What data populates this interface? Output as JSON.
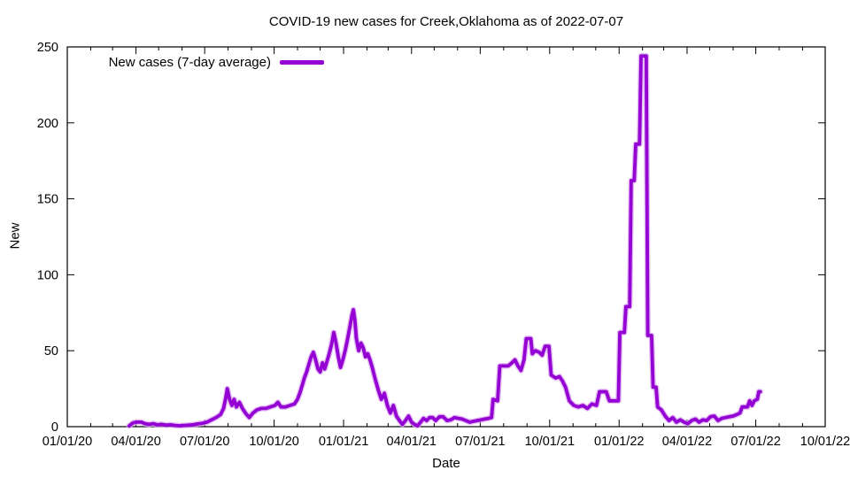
{
  "chart_data": {
    "type": "line",
    "title": "COVID-19 new cases for Creek,Oklahoma as of 2022-07-07",
    "xlabel": "Date",
    "ylabel": "New",
    "x_range": [
      "2020-01-01",
      "2022-10-01"
    ],
    "ylim": [
      0,
      250
    ],
    "grid": false,
    "legend_position": "top-left-inside",
    "background": "#ffffff",
    "border_color": "#000000",
    "y_ticks": [
      0,
      50,
      100,
      150,
      200,
      250
    ],
    "x_ticks": [
      {
        "label": "01/01/20",
        "date": "2020-01-01"
      },
      {
        "label": "04/01/20",
        "date": "2020-04-01"
      },
      {
        "label": "07/01/20",
        "date": "2020-07-01"
      },
      {
        "label": "10/01/20",
        "date": "2020-10-01"
      },
      {
        "label": "01/01/21",
        "date": "2021-01-01"
      },
      {
        "label": "04/01/21",
        "date": "2021-04-01"
      },
      {
        "label": "07/01/21",
        "date": "2021-07-01"
      },
      {
        "label": "10/01/21",
        "date": "2021-10-01"
      },
      {
        "label": "01/01/22",
        "date": "2022-01-01"
      },
      {
        "label": "04/01/22",
        "date": "2022-04-01"
      },
      {
        "label": "07/01/22",
        "date": "2022-07-01"
      },
      {
        "label": "10/01/22",
        "date": "2022-10-01"
      }
    ],
    "minor_x_ticks": "monthly",
    "series": [
      {
        "name": "New cases (7-day average)",
        "color": "#9400d3",
        "halo_color": "#d8a6ee",
        "points": [
          [
            "2020-03-23",
            0.5
          ],
          [
            "2020-03-28",
            2.5
          ],
          [
            "2020-04-02",
            3
          ],
          [
            "2020-04-08",
            3
          ],
          [
            "2020-04-13",
            2
          ],
          [
            "2020-04-18",
            1.5
          ],
          [
            "2020-04-24",
            2
          ],
          [
            "2020-04-29",
            1.2
          ],
          [
            "2020-05-05",
            1.5
          ],
          [
            "2020-05-11",
            1
          ],
          [
            "2020-05-17",
            1.2
          ],
          [
            "2020-05-23",
            0.8
          ],
          [
            "2020-05-29",
            0.6
          ],
          [
            "2020-06-04",
            0.8
          ],
          [
            "2020-06-10",
            1
          ],
          [
            "2020-06-16",
            1.3
          ],
          [
            "2020-06-22",
            1.8
          ],
          [
            "2020-06-28",
            2.2
          ],
          [
            "2020-07-04",
            3
          ],
          [
            "2020-07-10",
            4.5
          ],
          [
            "2020-07-16",
            6
          ],
          [
            "2020-07-22",
            8
          ],
          [
            "2020-07-26",
            12
          ],
          [
            "2020-07-29",
            19
          ],
          [
            "2020-07-31",
            25
          ],
          [
            "2020-08-03",
            18
          ],
          [
            "2020-08-06",
            14
          ],
          [
            "2020-08-09",
            18
          ],
          [
            "2020-08-12",
            13
          ],
          [
            "2020-08-16",
            16
          ],
          [
            "2020-08-20",
            12
          ],
          [
            "2020-08-24",
            9
          ],
          [
            "2020-08-29",
            6
          ],
          [
            "2020-09-03",
            9
          ],
          [
            "2020-09-08",
            11
          ],
          [
            "2020-09-14",
            12
          ],
          [
            "2020-09-20",
            12
          ],
          [
            "2020-09-26",
            13
          ],
          [
            "2020-10-02",
            14
          ],
          [
            "2020-10-06",
            16
          ],
          [
            "2020-10-10",
            13
          ],
          [
            "2020-10-16",
            13
          ],
          [
            "2020-10-22",
            14
          ],
          [
            "2020-10-28",
            15
          ],
          [
            "2020-11-01",
            18
          ],
          [
            "2020-11-04",
            22
          ],
          [
            "2020-11-07",
            27
          ],
          [
            "2020-11-10",
            32
          ],
          [
            "2020-11-13",
            36
          ],
          [
            "2020-11-16",
            41
          ],
          [
            "2020-11-19",
            46
          ],
          [
            "2020-11-22",
            49
          ],
          [
            "2020-11-25",
            44
          ],
          [
            "2020-11-28",
            38
          ],
          [
            "2020-12-01",
            36
          ],
          [
            "2020-12-04",
            42
          ],
          [
            "2020-12-07",
            38
          ],
          [
            "2020-12-10",
            43
          ],
          [
            "2020-12-13",
            48
          ],
          [
            "2020-12-16",
            54
          ],
          [
            "2020-12-19",
            62
          ],
          [
            "2020-12-22",
            55
          ],
          [
            "2020-12-25",
            46
          ],
          [
            "2020-12-28",
            39
          ],
          [
            "2020-12-31",
            44
          ],
          [
            "2021-01-03",
            50
          ],
          [
            "2021-01-06",
            57
          ],
          [
            "2021-01-09",
            65
          ],
          [
            "2021-01-12",
            73
          ],
          [
            "2021-01-14",
            77
          ],
          [
            "2021-01-16",
            70
          ],
          [
            "2021-01-18",
            58
          ],
          [
            "2021-01-21",
            50
          ],
          [
            "2021-01-24",
            55
          ],
          [
            "2021-01-27",
            52
          ],
          [
            "2021-01-30",
            46
          ],
          [
            "2021-02-02",
            48
          ],
          [
            "2021-02-05",
            44
          ],
          [
            "2021-02-08",
            39
          ],
          [
            "2021-02-12",
            31
          ],
          [
            "2021-02-16",
            24
          ],
          [
            "2021-02-20",
            18
          ],
          [
            "2021-02-24",
            22
          ],
          [
            "2021-02-28",
            14
          ],
          [
            "2021-03-04",
            9
          ],
          [
            "2021-03-08",
            14
          ],
          [
            "2021-03-12",
            7
          ],
          [
            "2021-03-16",
            4
          ],
          [
            "2021-03-20",
            1.5
          ],
          [
            "2021-03-24",
            4
          ],
          [
            "2021-03-28",
            7
          ],
          [
            "2021-04-01",
            3
          ],
          [
            "2021-04-05",
            1.5
          ],
          [
            "2021-04-09",
            0.5
          ],
          [
            "2021-04-13",
            3
          ],
          [
            "2021-04-17",
            5.5
          ],
          [
            "2021-04-21",
            4
          ],
          [
            "2021-04-25",
            6
          ],
          [
            "2021-04-29",
            6
          ],
          [
            "2021-05-03",
            4
          ],
          [
            "2021-05-08",
            6.5
          ],
          [
            "2021-05-13",
            6.5
          ],
          [
            "2021-05-18",
            4
          ],
          [
            "2021-05-23",
            4.5
          ],
          [
            "2021-05-28",
            6
          ],
          [
            "2021-06-02",
            5.5
          ],
          [
            "2021-06-07",
            5
          ],
          [
            "2021-06-12",
            4
          ],
          [
            "2021-06-17",
            3
          ],
          [
            "2021-06-22",
            3.5
          ],
          [
            "2021-06-27",
            4
          ],
          [
            "2021-07-02",
            4.5
          ],
          [
            "2021-07-07",
            5
          ],
          [
            "2021-07-12",
            5.5
          ],
          [
            "2021-07-16",
            6
          ],
          [
            "2021-07-18",
            18
          ],
          [
            "2021-07-24",
            17
          ],
          [
            "2021-07-27",
            40
          ],
          [
            "2021-08-07",
            40
          ],
          [
            "2021-08-12",
            42
          ],
          [
            "2021-08-16",
            44
          ],
          [
            "2021-08-20",
            40
          ],
          [
            "2021-08-24",
            37
          ],
          [
            "2021-08-28",
            44
          ],
          [
            "2021-08-31",
            58
          ],
          [
            "2021-09-06",
            58
          ],
          [
            "2021-09-08",
            48
          ],
          [
            "2021-09-12",
            50
          ],
          [
            "2021-09-17",
            49
          ],
          [
            "2021-09-21",
            47
          ],
          [
            "2021-09-25",
            53
          ],
          [
            "2021-09-30",
            53
          ],
          [
            "2021-10-03",
            34
          ],
          [
            "2021-10-09",
            32
          ],
          [
            "2021-10-14",
            33
          ],
          [
            "2021-10-18",
            30
          ],
          [
            "2021-10-22",
            26
          ],
          [
            "2021-10-27",
            17
          ],
          [
            "2021-11-02",
            14
          ],
          [
            "2021-11-08",
            13
          ],
          [
            "2021-11-14",
            14
          ],
          [
            "2021-11-20",
            12
          ],
          [
            "2021-11-26",
            15
          ],
          [
            "2021-12-02",
            14
          ],
          [
            "2021-12-06",
            23
          ],
          [
            "2021-12-15",
            23
          ],
          [
            "2021-12-19",
            17
          ],
          [
            "2021-12-31",
            17
          ],
          [
            "2022-01-02",
            62
          ],
          [
            "2022-01-08",
            62
          ],
          [
            "2022-01-10",
            79
          ],
          [
            "2022-01-15",
            79
          ],
          [
            "2022-01-17",
            162
          ],
          [
            "2022-01-21",
            162
          ],
          [
            "2022-01-23",
            186
          ],
          [
            "2022-01-28",
            186
          ],
          [
            "2022-01-30",
            244
          ],
          [
            "2022-02-06",
            244
          ],
          [
            "2022-02-08",
            60
          ],
          [
            "2022-02-13",
            60
          ],
          [
            "2022-02-15",
            26
          ],
          [
            "2022-02-19",
            26
          ],
          [
            "2022-02-21",
            13
          ],
          [
            "2022-02-26",
            11
          ],
          [
            "2022-03-03",
            7
          ],
          [
            "2022-03-08",
            4
          ],
          [
            "2022-03-13",
            6
          ],
          [
            "2022-03-18",
            3
          ],
          [
            "2022-03-23",
            4.5
          ],
          [
            "2022-03-28",
            3
          ],
          [
            "2022-04-02",
            2
          ],
          [
            "2022-04-07",
            4
          ],
          [
            "2022-04-12",
            5
          ],
          [
            "2022-04-17",
            3
          ],
          [
            "2022-04-22",
            4.5
          ],
          [
            "2022-04-27",
            4
          ],
          [
            "2022-05-02",
            6.5
          ],
          [
            "2022-05-07",
            7
          ],
          [
            "2022-05-12",
            4
          ],
          [
            "2022-05-17",
            5.5
          ],
          [
            "2022-05-22",
            6
          ],
          [
            "2022-05-27",
            6.5
          ],
          [
            "2022-06-01",
            7
          ],
          [
            "2022-06-06",
            8
          ],
          [
            "2022-06-10",
            9
          ],
          [
            "2022-06-13",
            13
          ],
          [
            "2022-06-20",
            13
          ],
          [
            "2022-06-23",
            17
          ],
          [
            "2022-06-26",
            14
          ],
          [
            "2022-06-29",
            17
          ],
          [
            "2022-07-03",
            18
          ],
          [
            "2022-07-05",
            23
          ],
          [
            "2022-07-07",
            23
          ]
        ]
      }
    ]
  }
}
